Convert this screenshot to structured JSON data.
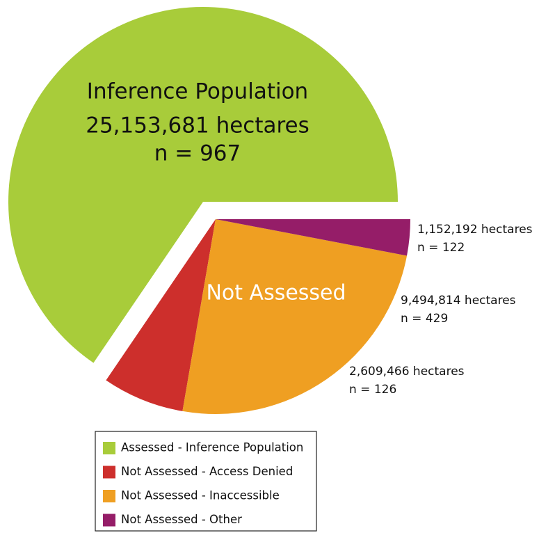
{
  "chart_data": {
    "type": "pie",
    "series": [
      {
        "name": "Assessed - Inference Population",
        "color": "#a8cc3a",
        "value": 25153681,
        "value_label": "25,153,681 hectares",
        "count": 967,
        "count_label": "n = 967"
      },
      {
        "name": "Not Assessed - Access Denied",
        "color": "#cd2f2c",
        "value": 2609466,
        "value_label": "2,609,466 hectares",
        "count": 126,
        "count_label": "n = 126"
      },
      {
        "name": "Not Assessed - Inaccessible",
        "color": "#ef9f22",
        "value": 9494814,
        "value_label": "9,494,814 hectares",
        "count": 429,
        "count_label": "n = 429"
      },
      {
        "name": "Not Assessed - Other",
        "color": "#951d68",
        "value": 1152192,
        "value_label": "1,152,192 hectares",
        "count": 122,
        "count_label": "n = 122"
      }
    ],
    "annotations": [
      "Inference Population",
      "Not Assessed"
    ]
  }
}
